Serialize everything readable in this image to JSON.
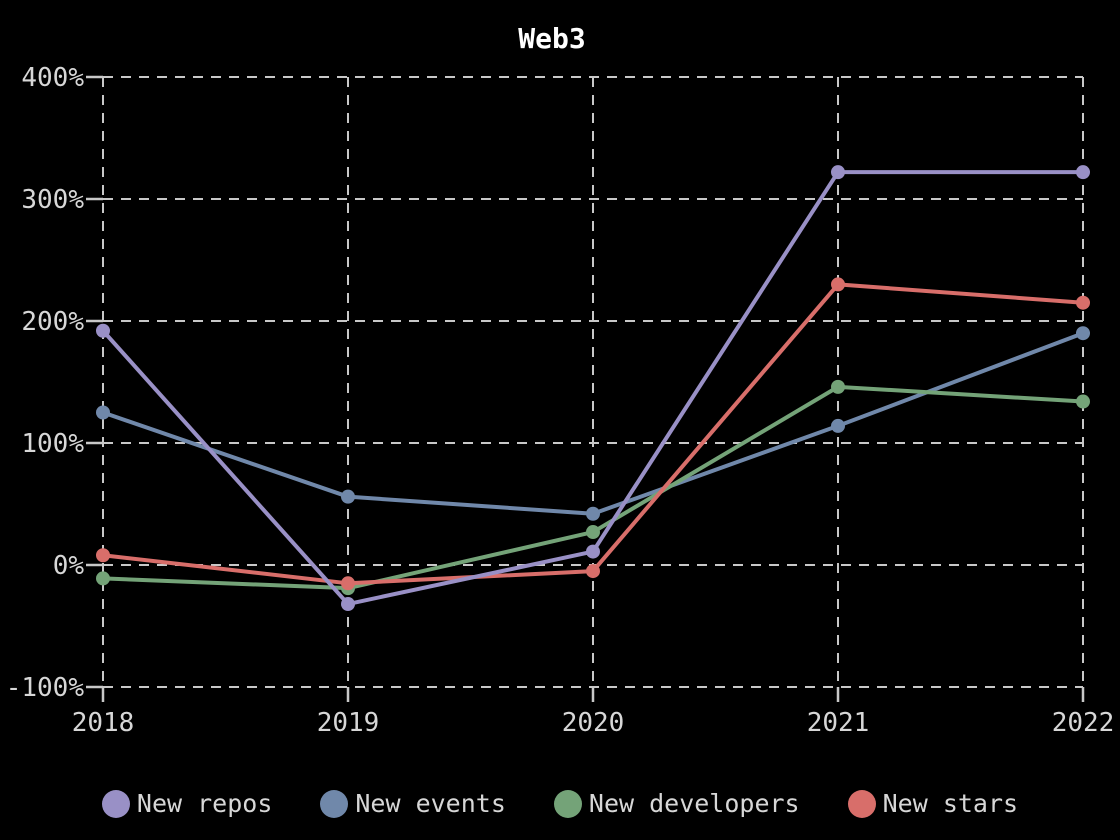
{
  "chart_data": {
    "type": "line",
    "title": "Web3",
    "categories": [
      "2018",
      "2019",
      "2020",
      "2021",
      "2022"
    ],
    "series": [
      {
        "name": "New repos",
        "color": "#9990c6",
        "values": [
          192,
          -32,
          11,
          322,
          322
        ]
      },
      {
        "name": "New events",
        "color": "#7088aa",
        "values": [
          125,
          56,
          42,
          114,
          190
        ]
      },
      {
        "name": "New developers",
        "color": "#74a378",
        "values": [
          -11,
          -19,
          27,
          146,
          134
        ]
      },
      {
        "name": "New stars",
        "color": "#d86e6a",
        "values": [
          8,
          -15,
          -5,
          230,
          215
        ]
      }
    ],
    "y_ticks": [
      {
        "value": 400,
        "label": "400%"
      },
      {
        "value": 300,
        "label": "300%"
      },
      {
        "value": 200,
        "label": "200%"
      },
      {
        "value": 100,
        "label": "100%"
      },
      {
        "value": 0,
        "label": "0%"
      },
      {
        "value": -100,
        "label": "-100%"
      }
    ],
    "ylim": [
      -100,
      400
    ],
    "xlabel": "",
    "ylabel": "",
    "grid": "dashed",
    "legend_position": "bottom",
    "colors": {
      "background": "#000000",
      "grid": "#c8c8c8",
      "tick_label": "#d7d7d7",
      "title": "#ffffff",
      "legend_text": "#d7d7d7"
    }
  }
}
